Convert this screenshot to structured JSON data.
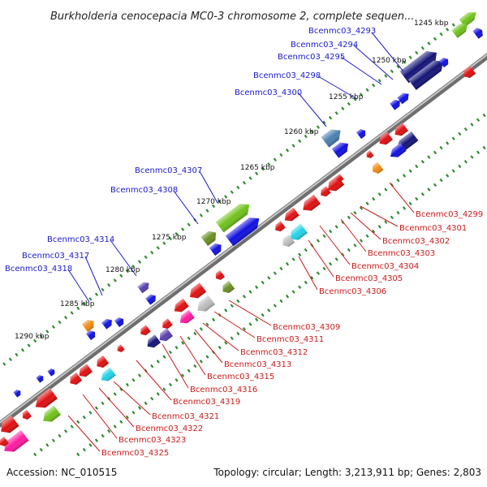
{
  "title": "Burkholderia cenocepacia MC0-3 chromosome 2, complete sequen...",
  "footer": {
    "accession": "Accession: NC_010515",
    "summary": "Topology: circular; Length: 3,213,911 bp; Genes: 2,803"
  },
  "kbp_ticks": [
    "1245 kbp",
    "1250 kbp",
    "1255 kbp",
    "1260 kbp",
    "1265 kbp",
    "1270 kbp",
    "1275 kbp",
    "1280 kbp",
    "1285 kbp",
    "1290 kbp"
  ],
  "labels_forward": [
    "Bcenmc03_4293",
    "Bcenmc03_4294",
    "Bcenmc03_4295",
    "Bcenmc03_4298",
    "Bcenmc03_4300",
    "Bcenmc03_4307",
    "Bcenmc03_4308",
    "Bcenmc03_4314",
    "Bcenmc03_4317",
    "Bcenmc03_4318"
  ],
  "labels_reverse": [
    "Bcenmc03_4299",
    "Bcenmc03_4301",
    "Bcenmc03_4302",
    "Bcenmc03_4303",
    "Bcenmc03_4304",
    "Bcenmc03_4305",
    "Bcenmc03_4306",
    "Bcenmc03_4309",
    "Bcenmc03_4311",
    "Bcenmc03_4312",
    "Bcenmc03_4313",
    "Bcenmc03_4315",
    "Bcenmc03_4316",
    "Bcenmc03_4319",
    "Bcenmc03_4321",
    "Bcenmc03_4322",
    "Bcenmc03_4323",
    "Bcenmc03_4325"
  ],
  "colors": {
    "backbone": "#808080",
    "tick_dots": "#2e8b2e",
    "label_forward": "#1a1ad0",
    "label_reverse": "#cc1a1a",
    "gene_blue": "#1010e0",
    "gene_navy": "#141478",
    "gene_red": "#e01010",
    "gene_green": "#6fc21a",
    "gene_olive": "#6b8e23",
    "gene_cyan": "#22d3e6",
    "gene_orange": "#f28c12",
    "gene_steel": "#4a7fb0",
    "gene_purple": "#5a3fb0",
    "gene_magenta": "#ff1aa0",
    "gene_grey": "#bdbdbd"
  }
}
